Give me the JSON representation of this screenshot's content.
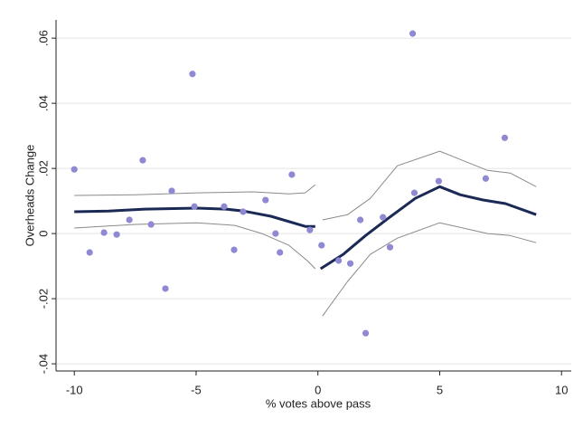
{
  "chart_data": {
    "type": "scatter",
    "x_label": "% votes above pass",
    "y_label": "Overheads Change",
    "xlim": [
      -10.75,
      10.4
    ],
    "ylim": [
      -0.0422,
      0.0656
    ],
    "xticks": [
      -10,
      -5,
      0,
      5,
      10
    ],
    "yticks": [
      {
        "value": -0.04,
        "label": "-.04"
      },
      {
        "value": -0.02,
        "label": "-.02"
      },
      0,
      {
        "value": 0.02,
        "label": ".02"
      },
      {
        "value": 0.04,
        "label": ".04"
      },
      {
        "value": 0.06,
        "label": ".06"
      }
    ],
    "grid": true,
    "series": [
      {
        "style": "markers",
        "color": "#8f88d2",
        "x": [
          -10,
          -9.37,
          -8.78,
          -8.26,
          -7.74,
          -7.19,
          -6.85,
          -6.26,
          -6.0,
          -5.15,
          -5.07,
          -3.85,
          -3.44,
          -3.07,
          -2.15,
          -1.74,
          -1.56,
          -1.07,
          -0.33,
          0.15,
          0.85,
          1.33,
          1.74,
          1.96,
          2.67,
          2.96,
          3.89,
          3.96,
          4.96,
          6.89,
          7.67
        ],
        "values": [
          0.0197,
          -0.0058,
          0.0003,
          -0.0003,
          0.0042,
          0.0225,
          0.0028,
          -0.0169,
          0.0131,
          0.049,
          0.0083,
          0.0083,
          -0.005,
          0.0067,
          0.0103,
          0.0,
          -0.0058,
          0.0181,
          0.0011,
          -0.0036,
          -0.0083,
          -0.0092,
          0.0042,
          -0.0306,
          0.005,
          -0.0042,
          0.0614,
          0.0125,
          0.0161,
          0.0169,
          0.0294
        ]
      },
      {
        "style": "line",
        "color": "#1b2a55",
        "line_width": 3,
        "x": [
          -10,
          -8.59,
          -7.11,
          -4.96,
          -3.78,
          -3.04,
          -1.93,
          -0.52,
          -0.11,
          null,
          0.11,
          1.04,
          1.96,
          2.89,
          4.0,
          5.0,
          5.85,
          6.78,
          7.7,
          8.96
        ],
        "values": [
          0.0067,
          0.0069,
          0.0075,
          0.0078,
          0.0075,
          0.0069,
          0.0053,
          0.0022,
          0.0022,
          null,
          -0.0108,
          -0.0064,
          -0.0006,
          0.0047,
          0.0108,
          0.0144,
          0.0119,
          0.0103,
          0.0092,
          0.0058
        ]
      },
      {
        "style": "line",
        "color": "#8a8a8a",
        "line_width": 1,
        "x": [
          -10,
          -7.48,
          -4.96,
          -2.67,
          -1.19,
          -0.52,
          -0.11,
          null,
          0.19,
          1.22,
          2.15,
          3.26,
          5.0,
          6.96,
          7.89,
          8.96
        ],
        "values": [
          0.0117,
          0.0119,
          0.0125,
          0.0128,
          0.0122,
          0.0125,
          0.015,
          null,
          0.0042,
          0.0058,
          0.0108,
          0.0208,
          0.0253,
          0.0194,
          0.0186,
          0.0144
        ]
      },
      {
        "style": "line",
        "color": "#8a8a8a",
        "line_width": 1,
        "x": [
          -10,
          -7.48,
          -4.96,
          -3.41,
          -2.3,
          -1.19,
          -0.44,
          -0.11,
          null,
          0.19,
          1.22,
          2.15,
          3.26,
          5.0,
          6.96,
          7.89,
          8.96
        ],
        "values": [
          0.0017,
          0.0028,
          0.0033,
          0.0025,
          0.0,
          -0.0036,
          -0.0083,
          -0.0108,
          null,
          -0.0253,
          -0.0147,
          -0.0064,
          -0.0014,
          0.0033,
          0.0,
          -0.0006,
          -0.0028
        ]
      }
    ]
  }
}
